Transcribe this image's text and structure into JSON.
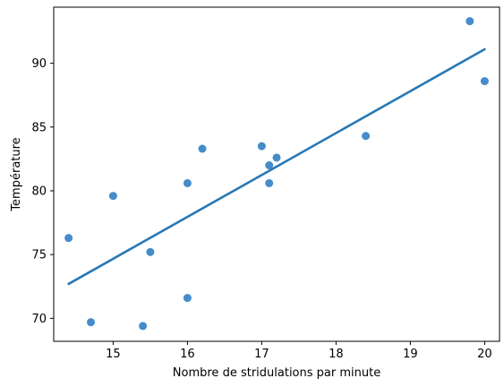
{
  "chart_data": {
    "type": "scatter",
    "xlabel": "Nombre de stridulations par minute",
    "ylabel": "Température",
    "xlim": [
      14.2,
      20.2
    ],
    "ylim": [
      68.2,
      94.4
    ],
    "xticks": [
      15,
      16,
      17,
      18,
      19,
      20
    ],
    "yticks": [
      70,
      75,
      80,
      85,
      90
    ],
    "grid": false,
    "colors": {
      "points": "#3a86c8",
      "line": "#2878b5"
    },
    "points": [
      {
        "x": 14.4,
        "y": 76.3
      },
      {
        "x": 14.7,
        "y": 69.7
      },
      {
        "x": 15.0,
        "y": 79.6
      },
      {
        "x": 15.4,
        "y": 69.4
      },
      {
        "x": 15.5,
        "y": 75.2
      },
      {
        "x": 16.0,
        "y": 71.6
      },
      {
        "x": 16.0,
        "y": 80.6
      },
      {
        "x": 16.2,
        "y": 83.3
      },
      {
        "x": 17.0,
        "y": 83.5
      },
      {
        "x": 17.1,
        "y": 82.0
      },
      {
        "x": 17.1,
        "y": 80.6
      },
      {
        "x": 17.2,
        "y": 82.6
      },
      {
        "x": 18.4,
        "y": 84.3
      },
      {
        "x": 19.8,
        "y": 93.3
      },
      {
        "x": 20.0,
        "y": 88.6
      }
    ],
    "regression_line": [
      {
        "x": 14.4,
        "y": 72.7
      },
      {
        "x": 20.0,
        "y": 91.1
      }
    ]
  }
}
